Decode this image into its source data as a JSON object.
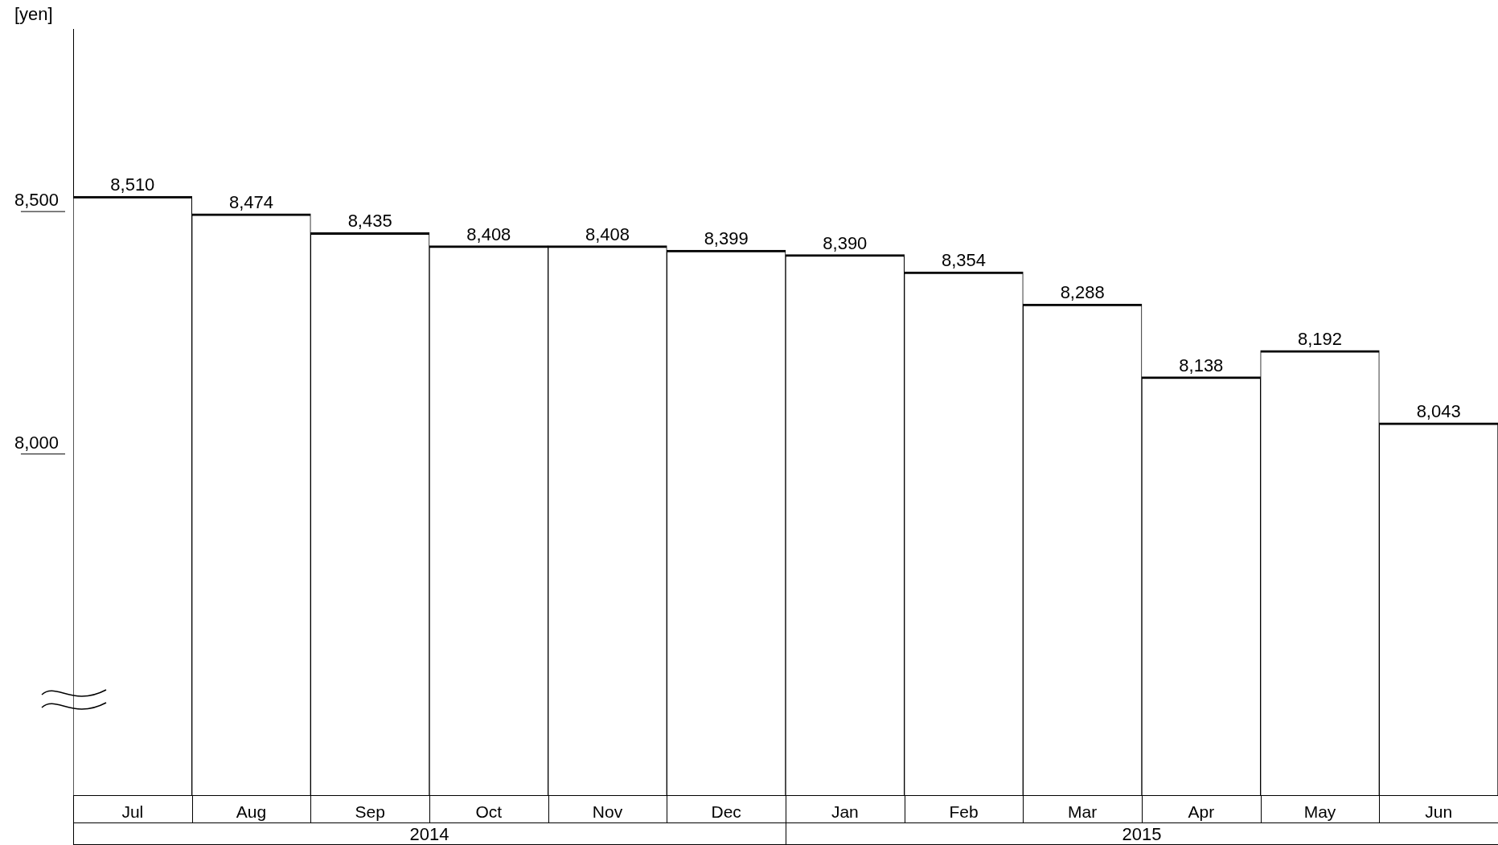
{
  "chart_data": {
    "type": "bar",
    "ylabel": "[yen]",
    "categories": [
      "Jul",
      "Aug",
      "Sep",
      "Oct",
      "Nov",
      "Dec",
      "Jan",
      "Feb",
      "Mar",
      "Apr",
      "May",
      "Jun"
    ],
    "values": [
      8510,
      8474,
      8435,
      8408,
      8408,
      8399,
      8390,
      8354,
      8288,
      8138,
      8192,
      8043
    ],
    "value_labels": [
      "8,510",
      "8,474",
      "8,435",
      "8,408",
      "8,408",
      "8,399",
      "8,390",
      "8,354",
      "8,288",
      "8,138",
      "8,192",
      "8,043"
    ],
    "color": "#ffffff",
    "ylim": [
      7275,
      8855
    ],
    "yticks": [
      {
        "value": 8000,
        "label": "8,000"
      },
      {
        "value": 8500,
        "label": "8,500"
      }
    ],
    "annotations": [
      "2014",
      "2015"
    ]
  }
}
